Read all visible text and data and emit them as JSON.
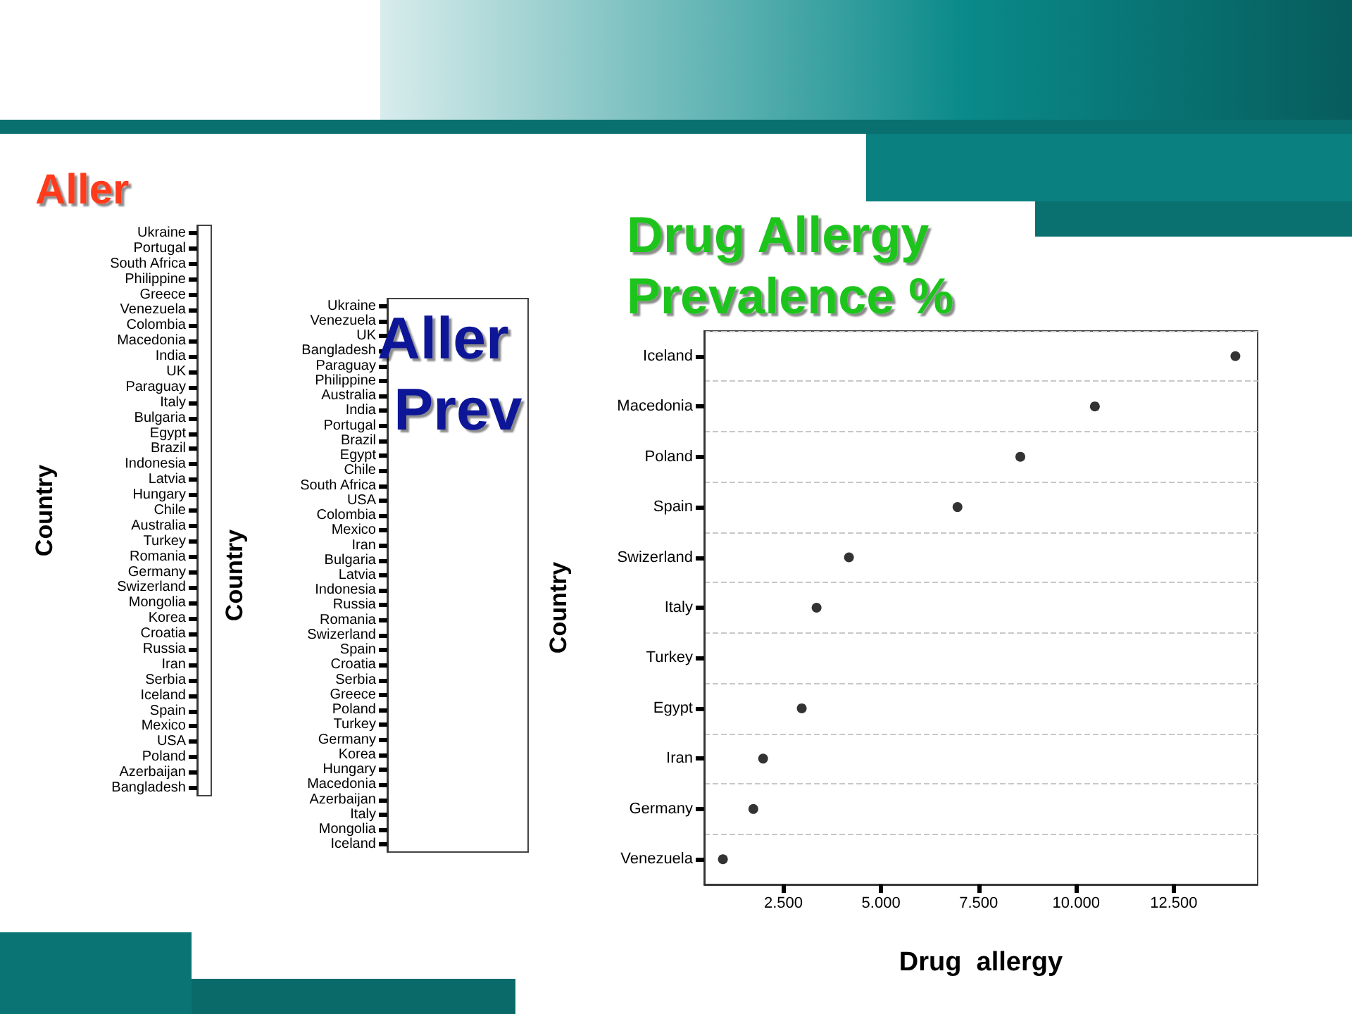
{
  "chart_data": [
    {
      "type": "other",
      "title": "Aller",
      "ylabel": "Country",
      "categories": [
        "Ukraine",
        "Portugal",
        "South Africa",
        "Philippine",
        "Greece",
        "Venezuela",
        "Colombia",
        "Macedonia",
        "India",
        "UK",
        "Paraguay",
        "Italy",
        "Bulgaria",
        "Egypt",
        "Brazil",
        "Indonesia",
        "Latvia",
        "Hungary",
        "Chile",
        "Australia",
        "Turkey",
        "Romania",
        "Germany",
        "Swizerland",
        "Mongolia",
        "Korea",
        "Croatia",
        "Russia",
        "Iran",
        "Serbia",
        "Iceland",
        "Spain",
        "Mexico",
        "USA",
        "Poland",
        "Azerbaijan",
        "Bangladesh"
      ]
    },
    {
      "type": "other",
      "title": "Aller Prev",
      "ylabel": "Country",
      "categories": [
        "Ukraine",
        "Venezuela",
        "UK",
        "Bangladesh",
        "Paraguay",
        "Philippine",
        "Australia",
        "India",
        "Portugal",
        "Brazil",
        "Egypt",
        "Chile",
        "South Africa",
        "USA",
        "Colombia",
        "Mexico",
        "Iran",
        "Bulgaria",
        "Latvia",
        "Indonesia",
        "Russia",
        "Romania",
        "Swizerland",
        "Spain",
        "Croatia",
        "Serbia",
        "Greece",
        "Poland",
        "Turkey",
        "Germany",
        "Korea",
        "Hungary",
        "Macedonia",
        "Azerbaijan",
        "Italy",
        "Mongolia",
        "Iceland"
      ]
    },
    {
      "type": "scatter",
      "title": "Drug Allergy Prevalence %",
      "xlabel": "Drug  allergy",
      "ylabel": "Country",
      "grid": "y",
      "marker": "circle",
      "color": "#000000",
      "orientation": "horizontal",
      "categories": [
        "Iceland",
        "Macedonia",
        "Poland",
        "Spain",
        "Swizerland",
        "Italy",
        "Turkey",
        "Egypt",
        "Iran",
        "Germany",
        "Venezuela"
      ],
      "values": [
        14.08,
        10.48,
        8.57,
        6.96,
        4.18,
        3.35,
        null,
        2.97,
        1.98,
        1.73,
        0.95
      ],
      "xlim": [
        0.47,
        14.65
      ],
      "xticks": [
        {
          "value": 2.5,
          "label": "2.500"
        },
        {
          "value": 5,
          "label": "5.000"
        },
        {
          "value": 7.5,
          "label": "7.500"
        },
        {
          "value": 10,
          "label": "10.000"
        },
        {
          "value": 12.5,
          "label": "12.500"
        }
      ]
    }
  ]
}
